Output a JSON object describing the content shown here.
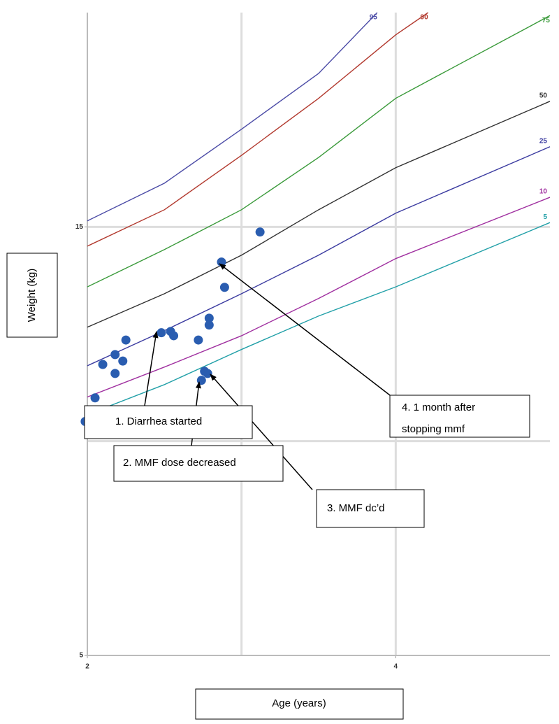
{
  "chart_data": {
    "type": "line",
    "x_label": "Age (years)",
    "y_label": "Weight (kg)",
    "xlim": [
      2,
      5
    ],
    "ylim": [
      5,
      20
    ],
    "xticks": [
      2,
      4
    ],
    "yticks": [
      5,
      15
    ],
    "xgrid": [
      3,
      4
    ],
    "ygrid": [
      10,
      15
    ],
    "series": [
      {
        "name": "95",
        "color": "#4b4ba6",
        "x": [
          2,
          2.5,
          3,
          3.5,
          3.88
        ],
        "values": [
          15.14,
          16.02,
          17.28,
          18.58,
          20.0
        ]
      },
      {
        "name": "90",
        "color": "#b2392e",
        "x": [
          2,
          2.5,
          3,
          3.5,
          4,
          4.21
        ],
        "values": [
          14.55,
          15.4,
          16.67,
          18.0,
          19.48,
          20.0
        ]
      },
      {
        "name": "75",
        "color": "#3a9a3a",
        "x": [
          2,
          2.5,
          3,
          3.5,
          4,
          5
        ],
        "values": [
          13.6,
          14.47,
          15.4,
          16.62,
          18.0,
          19.93
        ]
      },
      {
        "name": "50",
        "color": "#333333",
        "x": [
          2,
          2.5,
          3,
          3.5,
          4,
          5
        ],
        "values": [
          12.66,
          13.44,
          14.34,
          15.4,
          16.38,
          17.93
        ]
      },
      {
        "name": "25",
        "color": "#3b3ba0",
        "x": [
          2,
          2.5,
          3,
          3.5,
          4,
          5
        ],
        "values": [
          11.76,
          12.58,
          13.44,
          14.34,
          15.32,
          16.87
        ]
      },
      {
        "name": "10",
        "color": "#a030a0",
        "x": [
          2,
          2.5,
          3,
          3.5,
          4,
          5
        ],
        "values": [
          11.03,
          11.73,
          12.46,
          13.33,
          14.26,
          15.69
        ]
      },
      {
        "name": "5",
        "color": "#22a0a8",
        "x": [
          2,
          2.5,
          3,
          3.5,
          4,
          5
        ],
        "values": [
          10.62,
          11.32,
          12.14,
          12.92,
          13.6,
          15.1
        ]
      }
    ],
    "points": {
      "color": "#2a5db0",
      "x": [
        1.986,
        2.05,
        2.1,
        2.18,
        2.18,
        2.23,
        2.25,
        2.48,
        2.54,
        2.56,
        2.72,
        2.74,
        2.76,
        2.78,
        2.79,
        2.79,
        2.87,
        2.89,
        3.12
      ],
      "values": [
        10.46,
        11.01,
        11.79,
        12.02,
        11.58,
        11.87,
        12.36,
        12.53,
        12.56,
        12.46,
        12.36,
        11.42,
        11.63,
        11.58,
        12.87,
        12.71,
        14.18,
        13.59,
        14.88
      ]
    },
    "annotations": [
      {
        "lines": [
          "1.    Diarrhea started"
        ]
      },
      {
        "lines": [
          "2.  MMF dose decreased"
        ]
      },
      {
        "lines": [
          "3.  MMF dc’d"
        ]
      },
      {
        "lines": [
          "4. 1 month after",
          "stopping mmf"
        ]
      }
    ]
  }
}
